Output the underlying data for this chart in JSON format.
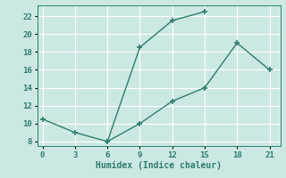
{
  "line1_x": [
    0,
    3,
    6,
    9,
    12,
    15
  ],
  "line1_y": [
    10.5,
    9.0,
    8.0,
    18.5,
    21.5,
    22.5
  ],
  "line2_x": [
    6,
    9,
    12,
    15,
    18,
    21
  ],
  "line2_y": [
    8.0,
    10.0,
    12.5,
    14.0,
    19.0,
    16.0
  ],
  "line_color": "#2e7d6e",
  "marker": "+",
  "marker_size": 5,
  "marker_linewidth": 1.2,
  "linewidth": 1.0,
  "xlabel": "Humidex (Indice chaleur)",
  "xlabel_fontsize": 7,
  "xlim": [
    -0.5,
    22
  ],
  "ylim": [
    7.5,
    23.2
  ],
  "xticks": [
    0,
    3,
    6,
    9,
    12,
    15,
    18,
    21
  ],
  "yticks": [
    8,
    10,
    12,
    14,
    16,
    18,
    20,
    22
  ],
  "background_color": "#cce8e4",
  "grid_color": "#ffffff",
  "tick_fontsize": 6.5
}
